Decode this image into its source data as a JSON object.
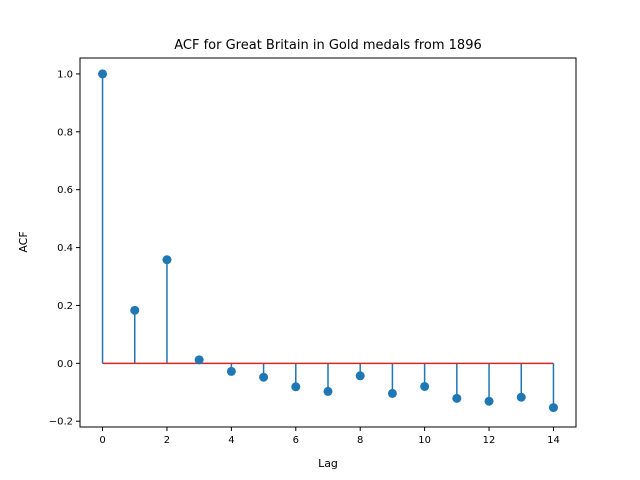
{
  "chart_data": {
    "type": "stem",
    "title": "ACF for Great Britain in Gold medals from 1896",
    "xlabel": "Lag",
    "ylabel": "ACF",
    "xlim": [
      -0.7,
      14.7
    ],
    "ylim": [
      -0.22,
      1.055
    ],
    "xticks": [
      0,
      2,
      4,
      6,
      8,
      10,
      12,
      14
    ],
    "yticks": [
      -0.2,
      0.0,
      0.2,
      0.4,
      0.6,
      0.8,
      1.0
    ],
    "ytick_labels": [
      "−0.2",
      "0.0",
      "0.2",
      "0.4",
      "0.6",
      "0.8",
      "1.0"
    ],
    "x": [
      0,
      1,
      2,
      3,
      4,
      5,
      6,
      7,
      8,
      9,
      10,
      11,
      12,
      13,
      14
    ],
    "values": [
      1.0,
      0.183,
      0.358,
      0.012,
      -0.028,
      -0.048,
      -0.081,
      -0.097,
      -0.043,
      -0.104,
      -0.08,
      -0.121,
      -0.131,
      -0.117,
      -0.153
    ],
    "baseline": 0.0,
    "colors": {
      "stem": "#1f77b4",
      "marker": "#1f77b4",
      "baseline": "#d62728"
    },
    "grid": false,
    "legend": "none"
  }
}
